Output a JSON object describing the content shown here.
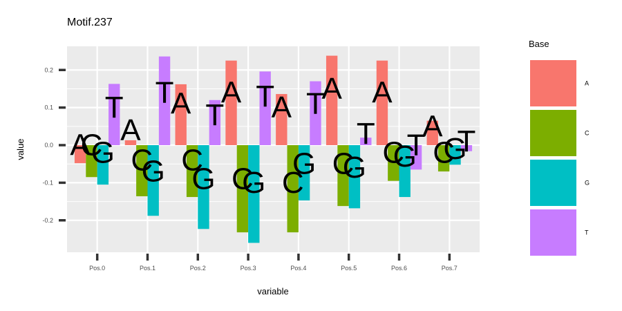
{
  "chart_data": {
    "type": "bar",
    "title": "Motif.237",
    "xlabel": "variable",
    "ylabel": "value",
    "categories": [
      "Pos.0",
      "Pos.1",
      "Pos.2",
      "Pos.3",
      "Pos.4",
      "Pos.5",
      "Pos.6",
      "Pos.7"
    ],
    "ylim": [
      -0.285,
      0.263
    ],
    "yticks": [
      -0.2,
      -0.1,
      0.0,
      0.1,
      0.2
    ],
    "ytick_labels": [
      "-0.2",
      "-0.1",
      "0.0",
      "0.1",
      "0.2"
    ],
    "grid": true,
    "legend": {
      "title": "Base",
      "position": "right"
    },
    "series": [
      {
        "name": "A",
        "color": "#F8766D",
        "values": [
          -0.048,
          0.013,
          0.162,
          0.225,
          0.136,
          0.238,
          0.225,
          0.065
        ],
        "letter_values": [
          0.0,
          0.04,
          0.11,
          0.14,
          0.1,
          0.15,
          0.14,
          0.05
        ]
      },
      {
        "name": "C",
        "color": "#7CAE00",
        "values": [
          -0.085,
          -0.136,
          -0.138,
          -0.232,
          -0.232,
          -0.162,
          -0.095,
          -0.07
        ],
        "letter_values": [
          0.0,
          -0.04,
          -0.04,
          -0.09,
          -0.1,
          -0.05,
          -0.02,
          -0.02
        ]
      },
      {
        "name": "G",
        "color": "#00BFC4",
        "values": [
          -0.105,
          -0.188,
          -0.223,
          -0.26,
          -0.147,
          -0.168,
          -0.138,
          -0.052
        ],
        "letter_values": [
          -0.02,
          -0.07,
          -0.09,
          -0.1,
          -0.05,
          -0.06,
          -0.03,
          -0.01
        ]
      },
      {
        "name": "T",
        "color": "#C77CFF",
        "values": [
          0.163,
          0.236,
          0.12,
          0.196,
          0.17,
          0.02,
          -0.065,
          -0.016
        ],
        "letter_values": [
          0.1,
          0.14,
          0.08,
          0.13,
          0.11,
          0.03,
          0.0,
          0.01
        ]
      }
    ]
  }
}
